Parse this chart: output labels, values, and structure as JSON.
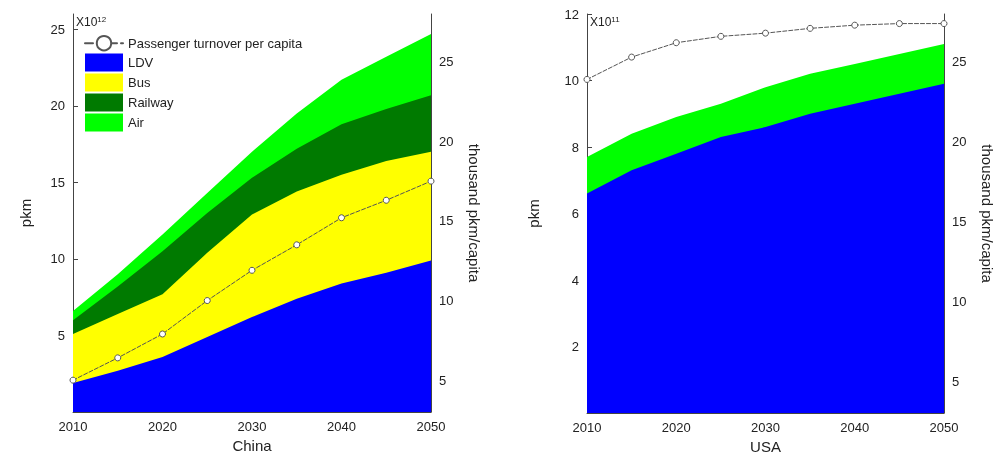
{
  "chart_data": [
    {
      "type": "area",
      "xlabel": "China",
      "ylabel": "pkm",
      "y2label": "thousand pkm/capita",
      "annotations": [
        "X10$^{12}$"
      ],
      "stacked": true,
      "legend": "top left",
      "grid": false,
      "x": [
        2010,
        2015,
        2020,
        2025,
        2030,
        2035,
        2040,
        2045,
        2050
      ],
      "xlim": [
        2010,
        2050
      ],
      "xticks": [
        2010,
        2020,
        2030,
        2040,
        2050
      ],
      "ylim": [
        0,
        26
      ],
      "yticks": [
        5,
        10,
        15,
        20,
        25
      ],
      "y2lim": [
        3,
        28
      ],
      "y2ticks": [
        5,
        10,
        15,
        20,
        25
      ],
      "series": [
        {
          "type": "line",
          "name": "Passenger turnover per capita",
          "color": "#555555",
          "axis": "y2",
          "marker": "circle",
          "line_style": "dashed",
          "values": [
            5.0,
            6.4,
            7.9,
            10.0,
            11.9,
            13.5,
            15.2,
            16.3,
            17.5
          ]
        },
        {
          "name": "LDV",
          "color": "#0000ff",
          "values": [
            1.9,
            2.7,
            3.6,
            4.9,
            6.2,
            7.4,
            8.4,
            9.1,
            9.9
          ]
        },
        {
          "name": "Bus",
          "color": "#ffff00",
          "values": [
            3.2,
            3.7,
            4.1,
            5.5,
            6.7,
            7.0,
            7.1,
            7.3,
            7.1
          ]
        },
        {
          "name": "Railway",
          "color": "#007a00",
          "values": [
            0.9,
            1.8,
            2.8,
            2.6,
            2.4,
            2.8,
            3.3,
            3.4,
            3.7
          ]
        },
        {
          "name": "Air",
          "color": "#00ff00",
          "values": [
            0.6,
            0.8,
            1.1,
            1.3,
            1.7,
            2.3,
            2.9,
            3.4,
            4.0
          ]
        }
      ]
    },
    {
      "type": "area",
      "xlabel": "USA",
      "ylabel": "pkm",
      "y2label": "thousand pkm/capita",
      "annotations": [
        "X10$^{11}$"
      ],
      "stacked": true,
      "grid": false,
      "x": [
        2010,
        2015,
        2020,
        2025,
        2030,
        2035,
        2040,
        2045,
        2050
      ],
      "xlim": [
        2010,
        2050
      ],
      "xticks": [
        2010,
        2020,
        2030,
        2040,
        2050
      ],
      "ylim": [
        0,
        12
      ],
      "yticks": [
        2,
        4,
        6,
        8,
        10,
        12
      ],
      "y2lim": [
        3,
        28
      ],
      "y2ticks": [
        5,
        10,
        15,
        20,
        25
      ],
      "series": [
        {
          "type": "line",
          "color": "#555555",
          "axis": "y2",
          "marker": "circle",
          "line_style": "dashed",
          "values": [
            23.9,
            25.3,
            26.2,
            26.6,
            26.8,
            27.1,
            27.3,
            27.4,
            27.4
          ]
        },
        {
          "color": "#0000ff",
          "values": [
            6.6,
            7.3,
            7.8,
            8.3,
            8.6,
            9.0,
            9.3,
            9.6,
            9.9
          ]
        },
        {
          "color": "#00ff00",
          "values": [
            1.1,
            1.1,
            1.1,
            1.0,
            1.2,
            1.2,
            1.2,
            1.2,
            1.2
          ]
        }
      ]
    }
  ]
}
